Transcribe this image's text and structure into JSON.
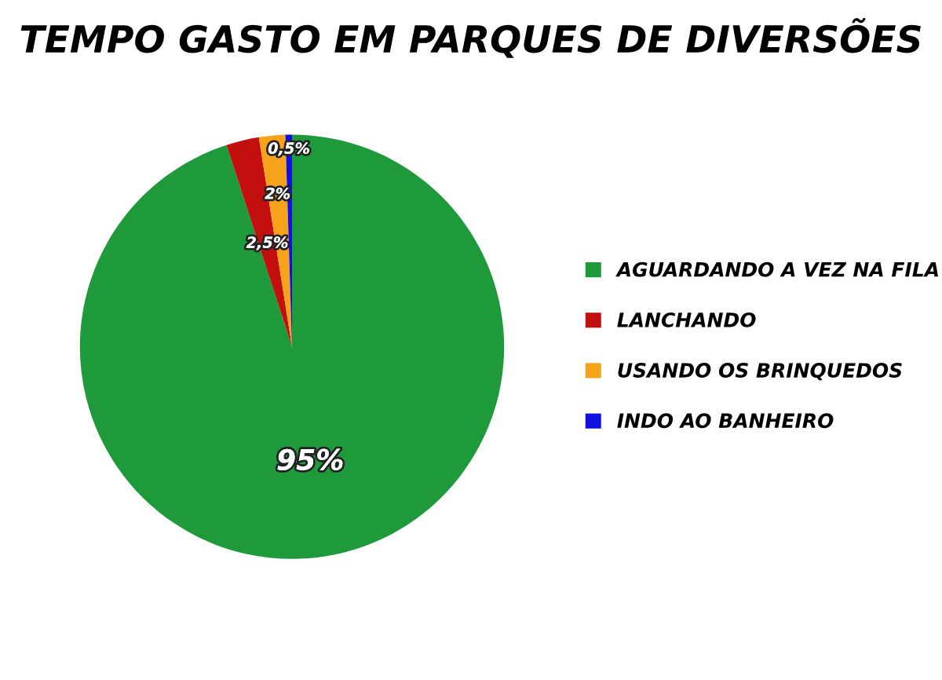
{
  "chart_data": {
    "type": "pie",
    "title": "TEMPO GASTO EM PARQUES DE DIVERSÕES",
    "categories": [
      "AGUARDANDO A VEZ NA FILA",
      "LANCHANDO",
      "USANDO OS BRINQUEDOS",
      "INDO AO BANHEIRO"
    ],
    "values": [
      95,
      2.5,
      2,
      0.5
    ],
    "value_labels": [
      "95%",
      "2,5%",
      "2%",
      "0,5%"
    ],
    "colors": [
      "#1f9a3a",
      "#c40f0f",
      "#f7a21b",
      "#1010e0"
    ],
    "legend": "right"
  }
}
